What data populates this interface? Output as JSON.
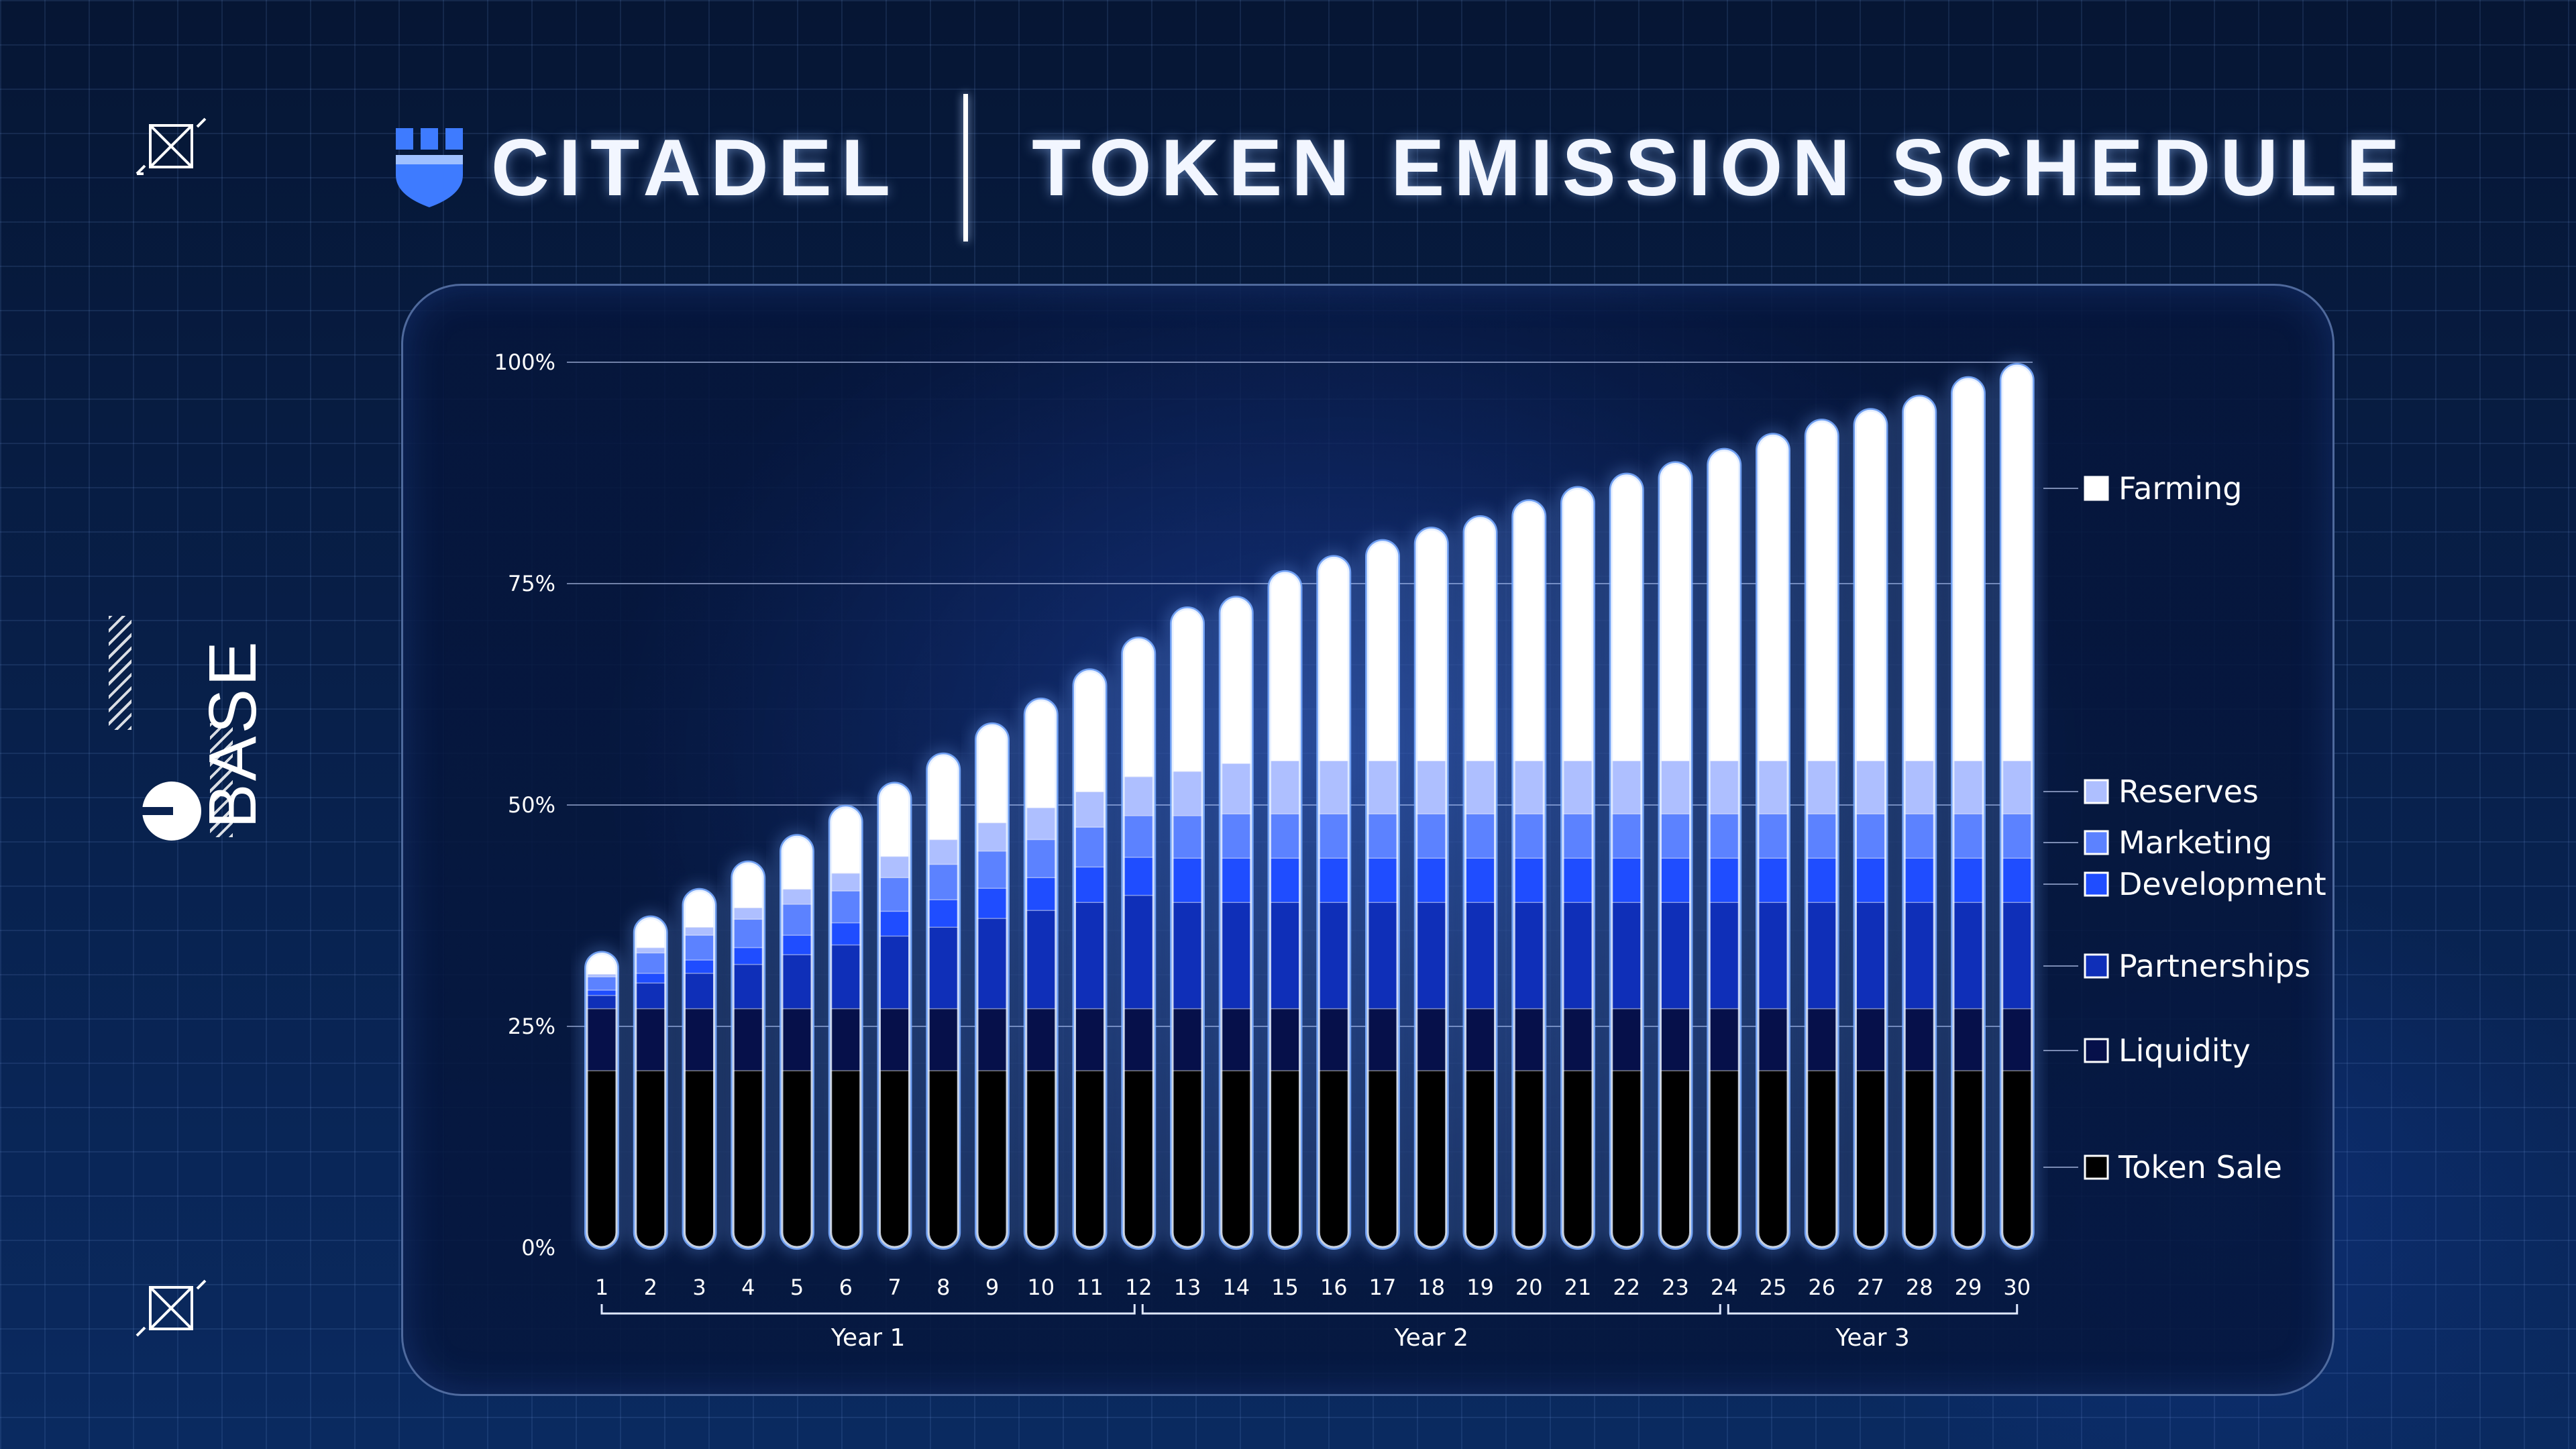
{
  "brand": {
    "name": "CITADEL",
    "logo_icon": "shield-icon"
  },
  "header": {
    "title": "TOKEN EMISSION SCHEDULE"
  },
  "side_logo": {
    "text": "BASE"
  },
  "chart_data": {
    "type": "bar",
    "stacked": true,
    "y_ticks": [
      "0%",
      "25%",
      "50%",
      "75%",
      "100%"
    ],
    "ylim": [
      0,
      100
    ],
    "categories": [
      "1",
      "2",
      "3",
      "4",
      "5",
      "6",
      "7",
      "8",
      "9",
      "10",
      "11",
      "12",
      "13",
      "14",
      "15",
      "16",
      "17",
      "18",
      "19",
      "20",
      "21",
      "22",
      "23",
      "24",
      "25",
      "26",
      "27",
      "28",
      "29",
      "30"
    ],
    "year_groups": [
      {
        "label": "Year 1",
        "from": "1",
        "to": "12"
      },
      {
        "label": "Year 2",
        "from": "12",
        "to": "24"
      },
      {
        "label": "Year 3",
        "from": "24",
        "to": "30"
      }
    ],
    "series": [
      {
        "name": "Token Sale",
        "color": "#000000",
        "values": [
          20,
          20,
          20,
          20,
          20,
          20,
          20,
          20,
          20,
          20,
          20,
          20,
          20,
          20,
          20,
          20,
          20,
          20,
          20,
          20,
          20,
          20,
          20,
          20,
          20,
          20,
          20,
          20,
          20,
          20
        ]
      },
      {
        "name": "Liquidity",
        "color": "#06104a",
        "values": [
          7,
          7,
          7,
          7,
          7,
          7,
          7,
          7,
          7,
          7,
          7,
          7,
          7,
          7,
          7,
          7,
          7,
          7,
          7,
          7,
          7,
          7,
          7,
          7,
          7,
          7,
          7,
          7,
          7,
          7
        ]
      },
      {
        "name": "Partnerships",
        "color": "#0f2fb8",
        "values": [
          1.5,
          2.9,
          4.0,
          5.0,
          6.1,
          7.2,
          8.2,
          9.2,
          10.2,
          11.1,
          12.0,
          12.8,
          12.0,
          12.0,
          12.0,
          12.0,
          12.0,
          12.0,
          12.0,
          12.0,
          12.0,
          12.0,
          12.0,
          12.0,
          12.0,
          12.0,
          12.0,
          12.0,
          12.0,
          12.0
        ]
      },
      {
        "name": "Development",
        "color": "#1f4dff",
        "values": [
          0.6,
          1.1,
          1.5,
          1.9,
          2.2,
          2.5,
          2.8,
          3.1,
          3.4,
          3.7,
          4.0,
          4.3,
          5.0,
          5.0,
          5.0,
          5.0,
          5.0,
          5.0,
          5.0,
          5.0,
          5.0,
          5.0,
          5.0,
          5.0,
          5.0,
          5.0,
          5.0,
          5.0,
          5.0,
          5.0
        ]
      },
      {
        "name": "Marketing",
        "color": "#5c82ff",
        "values": [
          1.5,
          2.3,
          2.8,
          3.2,
          3.5,
          3.6,
          3.8,
          4.0,
          4.2,
          4.3,
          4.5,
          4.7,
          4.8,
          5.0,
          5.0,
          5.0,
          5.0,
          5.0,
          5.0,
          5.0,
          5.0,
          5.0,
          5.0,
          5.0,
          5.0,
          5.0,
          5.0,
          5.0,
          5.0,
          5.0
        ]
      },
      {
        "name": "Reserves",
        "color": "#aebfff",
        "values": [
          0.3,
          0.6,
          0.9,
          1.3,
          1.7,
          2.0,
          2.4,
          2.8,
          3.2,
          3.6,
          4.0,
          4.4,
          5.0,
          5.7,
          6.0,
          6.0,
          6.0,
          6.0,
          6.0,
          6.0,
          6.0,
          6.0,
          6.0,
          6.0,
          6.0,
          6.0,
          6.0,
          6.0,
          6.0,
          6.0
        ]
      },
      {
        "name": "Farming",
        "color": "#ffffff",
        "values": [
          2.4,
          3.4,
          4.2,
          5.1,
          6.0,
          7.5,
          8.2,
          9.6,
          11.1,
          12.2,
          13.7,
          15.6,
          18.4,
          18.7,
          21.3,
          23.0,
          24.8,
          26.2,
          27.5,
          29.3,
          30.8,
          32.3,
          33.6,
          35.1,
          36.8,
          38.4,
          39.6,
          41.1,
          43.2,
          44.7
        ]
      }
    ]
  }
}
